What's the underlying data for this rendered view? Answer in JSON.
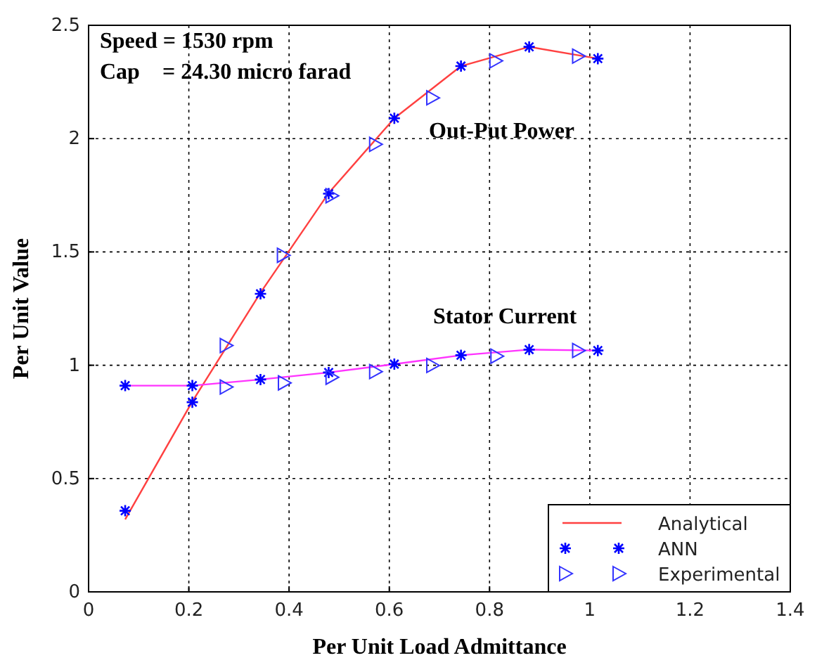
{
  "chart_data": {
    "type": "line",
    "xlabel": "Per Unit Load Admittance",
    "ylabel": "Per Unit Value",
    "xlim": [
      0,
      1.4
    ],
    "xticks": [
      0,
      0.2,
      0.4,
      0.6,
      0.8,
      1,
      1.2,
      1.4
    ],
    "ylim": [
      0,
      2.5
    ],
    "yticks": [
      0,
      0.5,
      1,
      1.5,
      2,
      2.5
    ],
    "grid": true,
    "legend": "bottom right",
    "annotations": [
      "Speed = 1530 rpm",
      "Cap    = 24.30 micro farad",
      "Out-Put Power",
      "Stator Current"
    ],
    "series": [
      {
        "name": "Analytical",
        "marker": "none",
        "line_style": "solid",
        "color": "#ff4040",
        "x": [
          0.073,
          0.207,
          0.343,
          0.479,
          0.61,
          0.743,
          0.879,
          1.016
        ],
        "values": [
          0.32,
          0.84,
          1.32,
          1.76,
          2.09,
          2.32,
          2.405,
          2.353
        ]
      },
      {
        "marker": "none",
        "line_style": "solid",
        "color": "#ff33ff",
        "x": [
          0.073,
          0.207,
          0.343,
          0.479,
          0.61,
          0.743,
          0.879,
          1.016
        ],
        "values": [
          0.91,
          0.91,
          0.937,
          0.968,
          1.005,
          1.044,
          1.069,
          1.065
        ]
      },
      {
        "name": "ANN",
        "type": "scatter",
        "marker": "cross",
        "color": "#0000ff",
        "x": [
          0.073,
          0.207,
          0.343,
          0.479,
          0.61,
          0.743,
          0.879,
          1.016
        ],
        "values": [
          0.358,
          0.837,
          1.315,
          1.757,
          2.09,
          2.32,
          2.405,
          2.353
        ]
      },
      {
        "type": "scatter",
        "marker": "cross",
        "color": "#0000ff",
        "x": [
          0.073,
          0.207,
          0.343,
          0.479,
          0.61,
          0.743,
          0.879,
          1.016
        ],
        "values": [
          0.91,
          0.91,
          0.937,
          0.968,
          1.005,
          1.044,
          1.069,
          1.065
        ]
      },
      {
        "name": "Experimental",
        "type": "scatter",
        "marker": "triangle",
        "color": "#3333ff",
        "x": [
          0.274,
          0.388,
          0.485,
          0.572,
          0.686,
          0.812,
          0.977
        ],
        "values": [
          1.087,
          1.485,
          1.748,
          1.975,
          2.18,
          2.343,
          2.364
        ]
      },
      {
        "type": "scatter",
        "marker": "triangle",
        "color": "#3333ff",
        "x": [
          0.274,
          0.39,
          0.485,
          0.572,
          0.686,
          0.814,
          0.977
        ],
        "values": [
          0.904,
          0.922,
          0.947,
          0.972,
          0.999,
          1.04,
          1.065
        ]
      }
    ]
  }
}
